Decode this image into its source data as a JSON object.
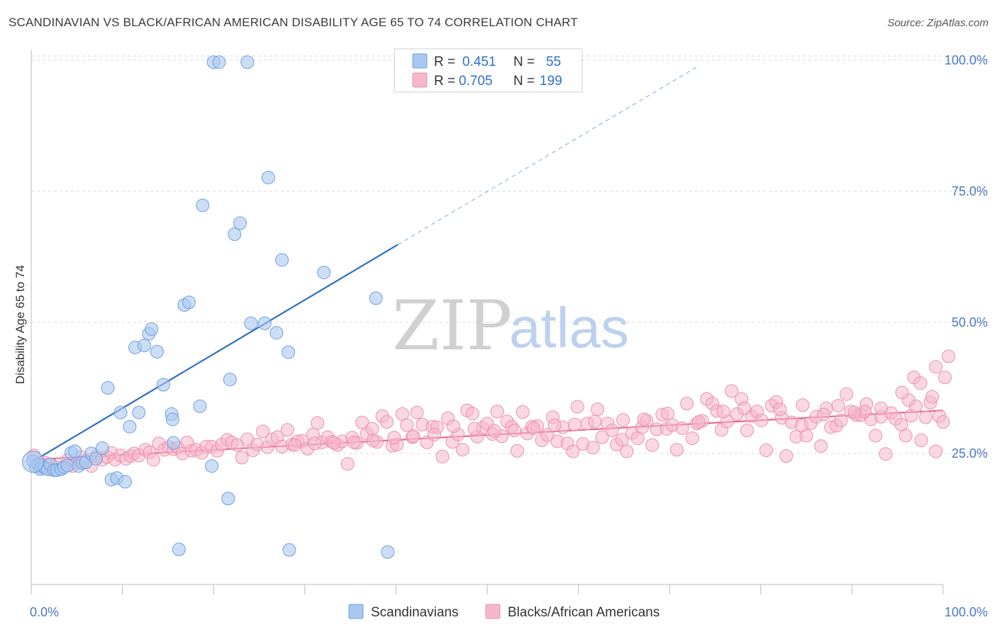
{
  "title": "SCANDINAVIAN VS BLACK/AFRICAN AMERICAN DISABILITY AGE 65 TO 74 CORRELATION CHART",
  "source": "Source: ZipAtlas.com",
  "watermark": {
    "zip": "ZIP",
    "atlas": "atlas"
  },
  "colors": {
    "blue_fill": "#a9c8f0",
    "blue_stroke": "#6f9fdc",
    "blue_line": "#2e6fc9",
    "pink_fill": "#f5b8cb",
    "pink_stroke": "#ec8fab",
    "pink_line": "#e76593",
    "tick_label": "#4a78c2",
    "grid": "#d9d9d9"
  },
  "legend": {
    "rows": [
      {
        "r_label": "R =",
        "r_value": "0.451",
        "n_label": "N =",
        "n_value": "55",
        "color_key": "blue"
      },
      {
        "r_label": "R =",
        "r_value": "0.705",
        "n_label": "N =",
        "n_value": "199",
        "color_key": "pink"
      }
    ]
  },
  "bottom_legend": [
    "Scandinavians",
    "Blacks/African Americans"
  ],
  "chart_data": {
    "type": "scatter",
    "title": "SCANDINAVIAN VS BLACK/AFRICAN AMERICAN DISABILITY AGE 65 TO 74 CORRELATION CHART",
    "xlabel": "",
    "ylabel": "Disability Age 65 to 74",
    "xlim": [
      0,
      100
    ],
    "ylim": [
      0,
      102
    ],
    "x_tick_labels": [
      "0.0%",
      "100.0%"
    ],
    "y_ticks": [
      25,
      50,
      75,
      100
    ],
    "y_tick_labels": [
      "25.0%",
      "50.0%",
      "75.0%",
      "100.0%"
    ],
    "grid": true,
    "legend_position": "top-center",
    "series": [
      {
        "name": "Scandinavians",
        "color": "#a9c8f0",
        "trend": {
          "x": [
            0,
            40.2
          ],
          "y": [
            23.3,
            64.8
          ],
          "extended_to": [
            73.1,
            98.8
          ]
        },
        "points": [
          [
            0.2,
            23.5
          ],
          [
            0.5,
            22.5
          ],
          [
            0.8,
            22.8
          ],
          [
            1.0,
            22.0
          ],
          [
            1.2,
            22.6
          ],
          [
            1.5,
            22.3
          ],
          [
            1.8,
            22.0
          ],
          [
            2.1,
            22.9
          ],
          [
            2.5,
            21.8
          ],
          [
            2.8,
            21.8
          ],
          [
            3.3,
            22.0
          ],
          [
            3.6,
            22.4
          ],
          [
            4.0,
            22.7
          ],
          [
            4.4,
            25.1
          ],
          [
            4.8,
            25.4
          ],
          [
            5.2,
            22.6
          ],
          [
            5.6,
            23.2
          ],
          [
            6.0,
            23.3
          ],
          [
            6.6,
            25.0
          ],
          [
            7.1,
            24.0
          ],
          [
            7.8,
            26.0
          ],
          [
            8.4,
            37.5
          ],
          [
            8.8,
            20.0
          ],
          [
            9.4,
            20.3
          ],
          [
            9.8,
            32.8
          ],
          [
            10.3,
            19.6
          ],
          [
            10.8,
            30.1
          ],
          [
            11.4,
            45.2
          ],
          [
            11.8,
            32.8
          ],
          [
            12.4,
            45.6
          ],
          [
            12.9,
            47.8
          ],
          [
            13.2,
            48.7
          ],
          [
            13.8,
            44.4
          ],
          [
            14.5,
            38.1
          ],
          [
            15.4,
            32.5
          ],
          [
            15.5,
            31.5
          ],
          [
            15.6,
            27.0
          ],
          [
            16.2,
            6.7
          ],
          [
            16.8,
            53.3
          ],
          [
            17.3,
            53.8
          ],
          [
            18.5,
            34.0
          ],
          [
            18.8,
            72.3
          ],
          [
            19.8,
            22.6
          ],
          [
            20.0,
            99.6
          ],
          [
            20.6,
            99.6
          ],
          [
            21.6,
            16.4
          ],
          [
            21.8,
            39.1
          ],
          [
            22.3,
            66.8
          ],
          [
            22.9,
            68.9
          ],
          [
            23.7,
            99.6
          ],
          [
            24.1,
            49.8
          ],
          [
            25.6,
            49.8
          ],
          [
            26.0,
            77.6
          ],
          [
            26.9,
            48.0
          ],
          [
            27.5,
            61.9
          ],
          [
            28.2,
            44.3
          ],
          [
            28.3,
            6.6
          ],
          [
            32.1,
            59.5
          ],
          [
            37.8,
            54.6
          ],
          [
            39.1,
            6.2
          ]
        ]
      },
      {
        "name": "Blacks/African Americans",
        "color": "#f5b8cb",
        "trend": {
          "x": [
            0,
            100
          ],
          "y": [
            23.8,
            33.2
          ]
        },
        "points": [
          [
            0.3,
            24.6
          ],
          [
            0.7,
            23.0
          ],
          [
            1.1,
            22.3
          ],
          [
            1.6,
            23.2
          ],
          [
            2.0,
            22.0
          ],
          [
            2.6,
            22.4
          ],
          [
            3.1,
            23.0
          ],
          [
            3.5,
            22.3
          ],
          [
            4.0,
            23.7
          ],
          [
            4.5,
            22.6
          ],
          [
            5.0,
            23.2
          ],
          [
            5.5,
            24.3
          ],
          [
            6.0,
            23.6
          ],
          [
            6.6,
            22.6
          ],
          [
            7.2,
            24.5
          ],
          [
            7.8,
            23.8
          ],
          [
            8.3,
            24.3
          ],
          [
            8.8,
            25.1
          ],
          [
            9.2,
            23.8
          ],
          [
            9.8,
            24.6
          ],
          [
            10.4,
            24.0
          ],
          [
            10.9,
            24.5
          ],
          [
            11.3,
            25.0
          ],
          [
            11.8,
            24.6
          ],
          [
            12.5,
            25.7
          ],
          [
            13.0,
            25.2
          ],
          [
            13.4,
            23.8
          ],
          [
            14.0,
            26.9
          ],
          [
            14.6,
            25.7
          ],
          [
            15.1,
            26.2
          ],
          [
            15.6,
            25.8
          ],
          [
            16.1,
            26.1
          ],
          [
            16.6,
            25.0
          ],
          [
            17.1,
            27.1
          ],
          [
            17.6,
            25.5
          ],
          [
            18.1,
            25.7
          ],
          [
            18.7,
            25.1
          ],
          [
            19.2,
            26.3
          ],
          [
            19.8,
            26.3
          ],
          [
            20.4,
            25.5
          ],
          [
            20.9,
            26.7
          ],
          [
            21.5,
            27.6
          ],
          [
            22.0,
            27.1
          ],
          [
            22.6,
            26.6
          ],
          [
            23.1,
            24.2
          ],
          [
            23.7,
            27.7
          ],
          [
            24.3,
            25.6
          ],
          [
            24.8,
            26.7
          ],
          [
            25.4,
            29.2
          ],
          [
            25.9,
            26.2
          ],
          [
            26.4,
            27.7
          ],
          [
            27.0,
            28.1
          ],
          [
            27.5,
            26.3
          ],
          [
            28.1,
            29.5
          ],
          [
            28.6,
            26.7
          ],
          [
            29.2,
            27.3
          ],
          [
            29.7,
            27.4
          ],
          [
            30.3,
            25.9
          ],
          [
            30.9,
            28.6
          ],
          [
            31.4,
            30.8
          ],
          [
            31.9,
            27.1
          ],
          [
            32.5,
            28.1
          ],
          [
            33.0,
            27.2
          ],
          [
            33.6,
            26.6
          ],
          [
            34.1,
            27.3
          ],
          [
            34.7,
            23.0
          ],
          [
            35.2,
            28.0
          ],
          [
            35.7,
            27.0
          ],
          [
            36.3,
            30.9
          ],
          [
            36.8,
            28.8
          ],
          [
            37.4,
            29.7
          ],
          [
            37.9,
            27.2
          ],
          [
            38.5,
            32.1
          ],
          [
            39.0,
            31.0
          ],
          [
            39.6,
            26.5
          ],
          [
            40.1,
            26.7
          ],
          [
            40.7,
            32.5
          ],
          [
            41.2,
            30.4
          ],
          [
            41.8,
            28.1
          ],
          [
            42.3,
            32.8
          ],
          [
            42.9,
            30.5
          ],
          [
            43.4,
            27.1
          ],
          [
            44.0,
            30.1
          ],
          [
            44.5,
            30.0
          ],
          [
            45.1,
            24.4
          ],
          [
            45.7,
            31.7
          ],
          [
            46.2,
            27.2
          ],
          [
            46.8,
            28.6
          ],
          [
            47.3,
            25.7
          ],
          [
            47.8,
            33.2
          ],
          [
            48.4,
            32.6
          ],
          [
            48.9,
            28.2
          ],
          [
            49.5,
            29.9
          ],
          [
            50.0,
            30.7
          ],
          [
            50.6,
            28.7
          ],
          [
            51.1,
            33.0
          ],
          [
            51.6,
            28.3
          ],
          [
            52.2,
            31.1
          ],
          [
            52.7,
            30.1
          ],
          [
            53.3,
            25.5
          ],
          [
            53.9,
            32.9
          ],
          [
            54.4,
            28.8
          ],
          [
            54.9,
            30.1
          ],
          [
            55.5,
            30.2
          ],
          [
            56.0,
            27.5
          ],
          [
            56.6,
            28.5
          ],
          [
            57.2,
            31.9
          ],
          [
            57.7,
            27.3
          ],
          [
            58.3,
            30.0
          ],
          [
            58.8,
            26.9
          ],
          [
            59.4,
            25.4
          ],
          [
            59.9,
            33.9
          ],
          [
            60.5,
            26.8
          ],
          [
            61.0,
            30.7
          ],
          [
            61.6,
            26.1
          ],
          [
            62.1,
            33.4
          ],
          [
            62.6,
            28.1
          ],
          [
            63.2,
            30.7
          ],
          [
            63.7,
            29.4
          ],
          [
            64.2,
            26.7
          ],
          [
            64.8,
            27.6
          ],
          [
            65.3,
            25.4
          ],
          [
            65.9,
            28.9
          ],
          [
            66.5,
            27.9
          ],
          [
            67.0,
            30.0
          ],
          [
            67.5,
            31.2
          ],
          [
            68.1,
            26.6
          ],
          [
            68.6,
            29.6
          ],
          [
            69.2,
            32.4
          ],
          [
            69.7,
            29.7
          ],
          [
            70.3,
            30.4
          ],
          [
            70.8,
            25.7
          ],
          [
            71.4,
            29.8
          ],
          [
            71.9,
            34.5
          ],
          [
            72.5,
            27.9
          ],
          [
            73.0,
            30.7
          ],
          [
            73.6,
            31.2
          ],
          [
            74.1,
            35.4
          ],
          [
            74.7,
            34.5
          ],
          [
            75.2,
            33.1
          ],
          [
            75.7,
            29.5
          ],
          [
            76.3,
            31.1
          ],
          [
            76.8,
            36.9
          ],
          [
            77.4,
            32.5
          ],
          [
            77.9,
            35.4
          ],
          [
            78.5,
            29.4
          ],
          [
            79.0,
            32.1
          ],
          [
            79.6,
            33.0
          ],
          [
            80.1,
            31.3
          ],
          [
            80.6,
            25.6
          ],
          [
            81.2,
            34.1
          ],
          [
            81.7,
            34.8
          ],
          [
            82.3,
            31.8
          ],
          [
            82.8,
            24.5
          ],
          [
            83.4,
            30.9
          ],
          [
            83.9,
            28.2
          ],
          [
            84.5,
            30.3
          ],
          [
            85.0,
            28.4
          ],
          [
            85.5,
            30.8
          ],
          [
            86.1,
            32.0
          ],
          [
            86.6,
            26.4
          ],
          [
            87.2,
            33.6
          ],
          [
            87.7,
            30.0
          ],
          [
            88.3,
            30.3
          ],
          [
            88.8,
            31.3
          ],
          [
            89.4,
            36.3
          ],
          [
            89.9,
            33.0
          ],
          [
            90.5,
            32.3
          ],
          [
            91.0,
            32.3
          ],
          [
            91.6,
            34.4
          ],
          [
            92.1,
            31.5
          ],
          [
            92.6,
            28.4
          ],
          [
            93.2,
            32.0
          ],
          [
            93.7,
            24.9
          ],
          [
            94.3,
            32.7
          ],
          [
            94.8,
            31.6
          ],
          [
            95.4,
            30.5
          ],
          [
            95.9,
            28.4
          ],
          [
            96.5,
            32.2
          ],
          [
            97.0,
            34.0
          ],
          [
            97.6,
            27.5
          ],
          [
            98.1,
            31.9
          ],
          [
            98.6,
            34.7
          ],
          [
            99.2,
            25.4
          ],
          [
            99.6,
            32.1
          ],
          [
            100.0,
            31.0
          ],
          [
            93.2,
            33.6
          ],
          [
            91.4,
            33.0
          ],
          [
            98.8,
            35.8
          ],
          [
            100.2,
            39.5
          ],
          [
            96.2,
            35.2
          ],
          [
            96.8,
            39.5
          ],
          [
            99.2,
            41.5
          ],
          [
            100.6,
            43.5
          ],
          [
            97.5,
            38.4
          ],
          [
            95.5,
            36.6
          ],
          [
            78.2,
            33.6
          ],
          [
            82.1,
            33.4
          ],
          [
            84.6,
            34.2
          ],
          [
            86.9,
            32.4
          ],
          [
            88.5,
            34.1
          ],
          [
            90.3,
            32.8
          ],
          [
            73.2,
            31.0
          ],
          [
            75.9,
            33.0
          ],
          [
            69.8,
            32.6
          ],
          [
            67.2,
            31.5
          ],
          [
            64.9,
            31.4
          ],
          [
            61.8,
            31.1
          ],
          [
            59.6,
            30.5
          ],
          [
            57.4,
            30.4
          ],
          [
            55.1,
            29.8
          ],
          [
            53.0,
            29.4
          ],
          [
            50.8,
            29.3
          ],
          [
            48.6,
            29.7
          ],
          [
            46.3,
            30.2
          ],
          [
            44.2,
            28.6
          ],
          [
            41.9,
            28.3
          ],
          [
            39.8,
            28.0
          ],
          [
            37.5,
            27.5
          ],
          [
            35.4,
            27.1
          ],
          [
            33.2,
            27.0
          ],
          [
            31.1,
            26.9
          ],
          [
            28.9,
            26.6
          ]
        ]
      }
    ]
  }
}
